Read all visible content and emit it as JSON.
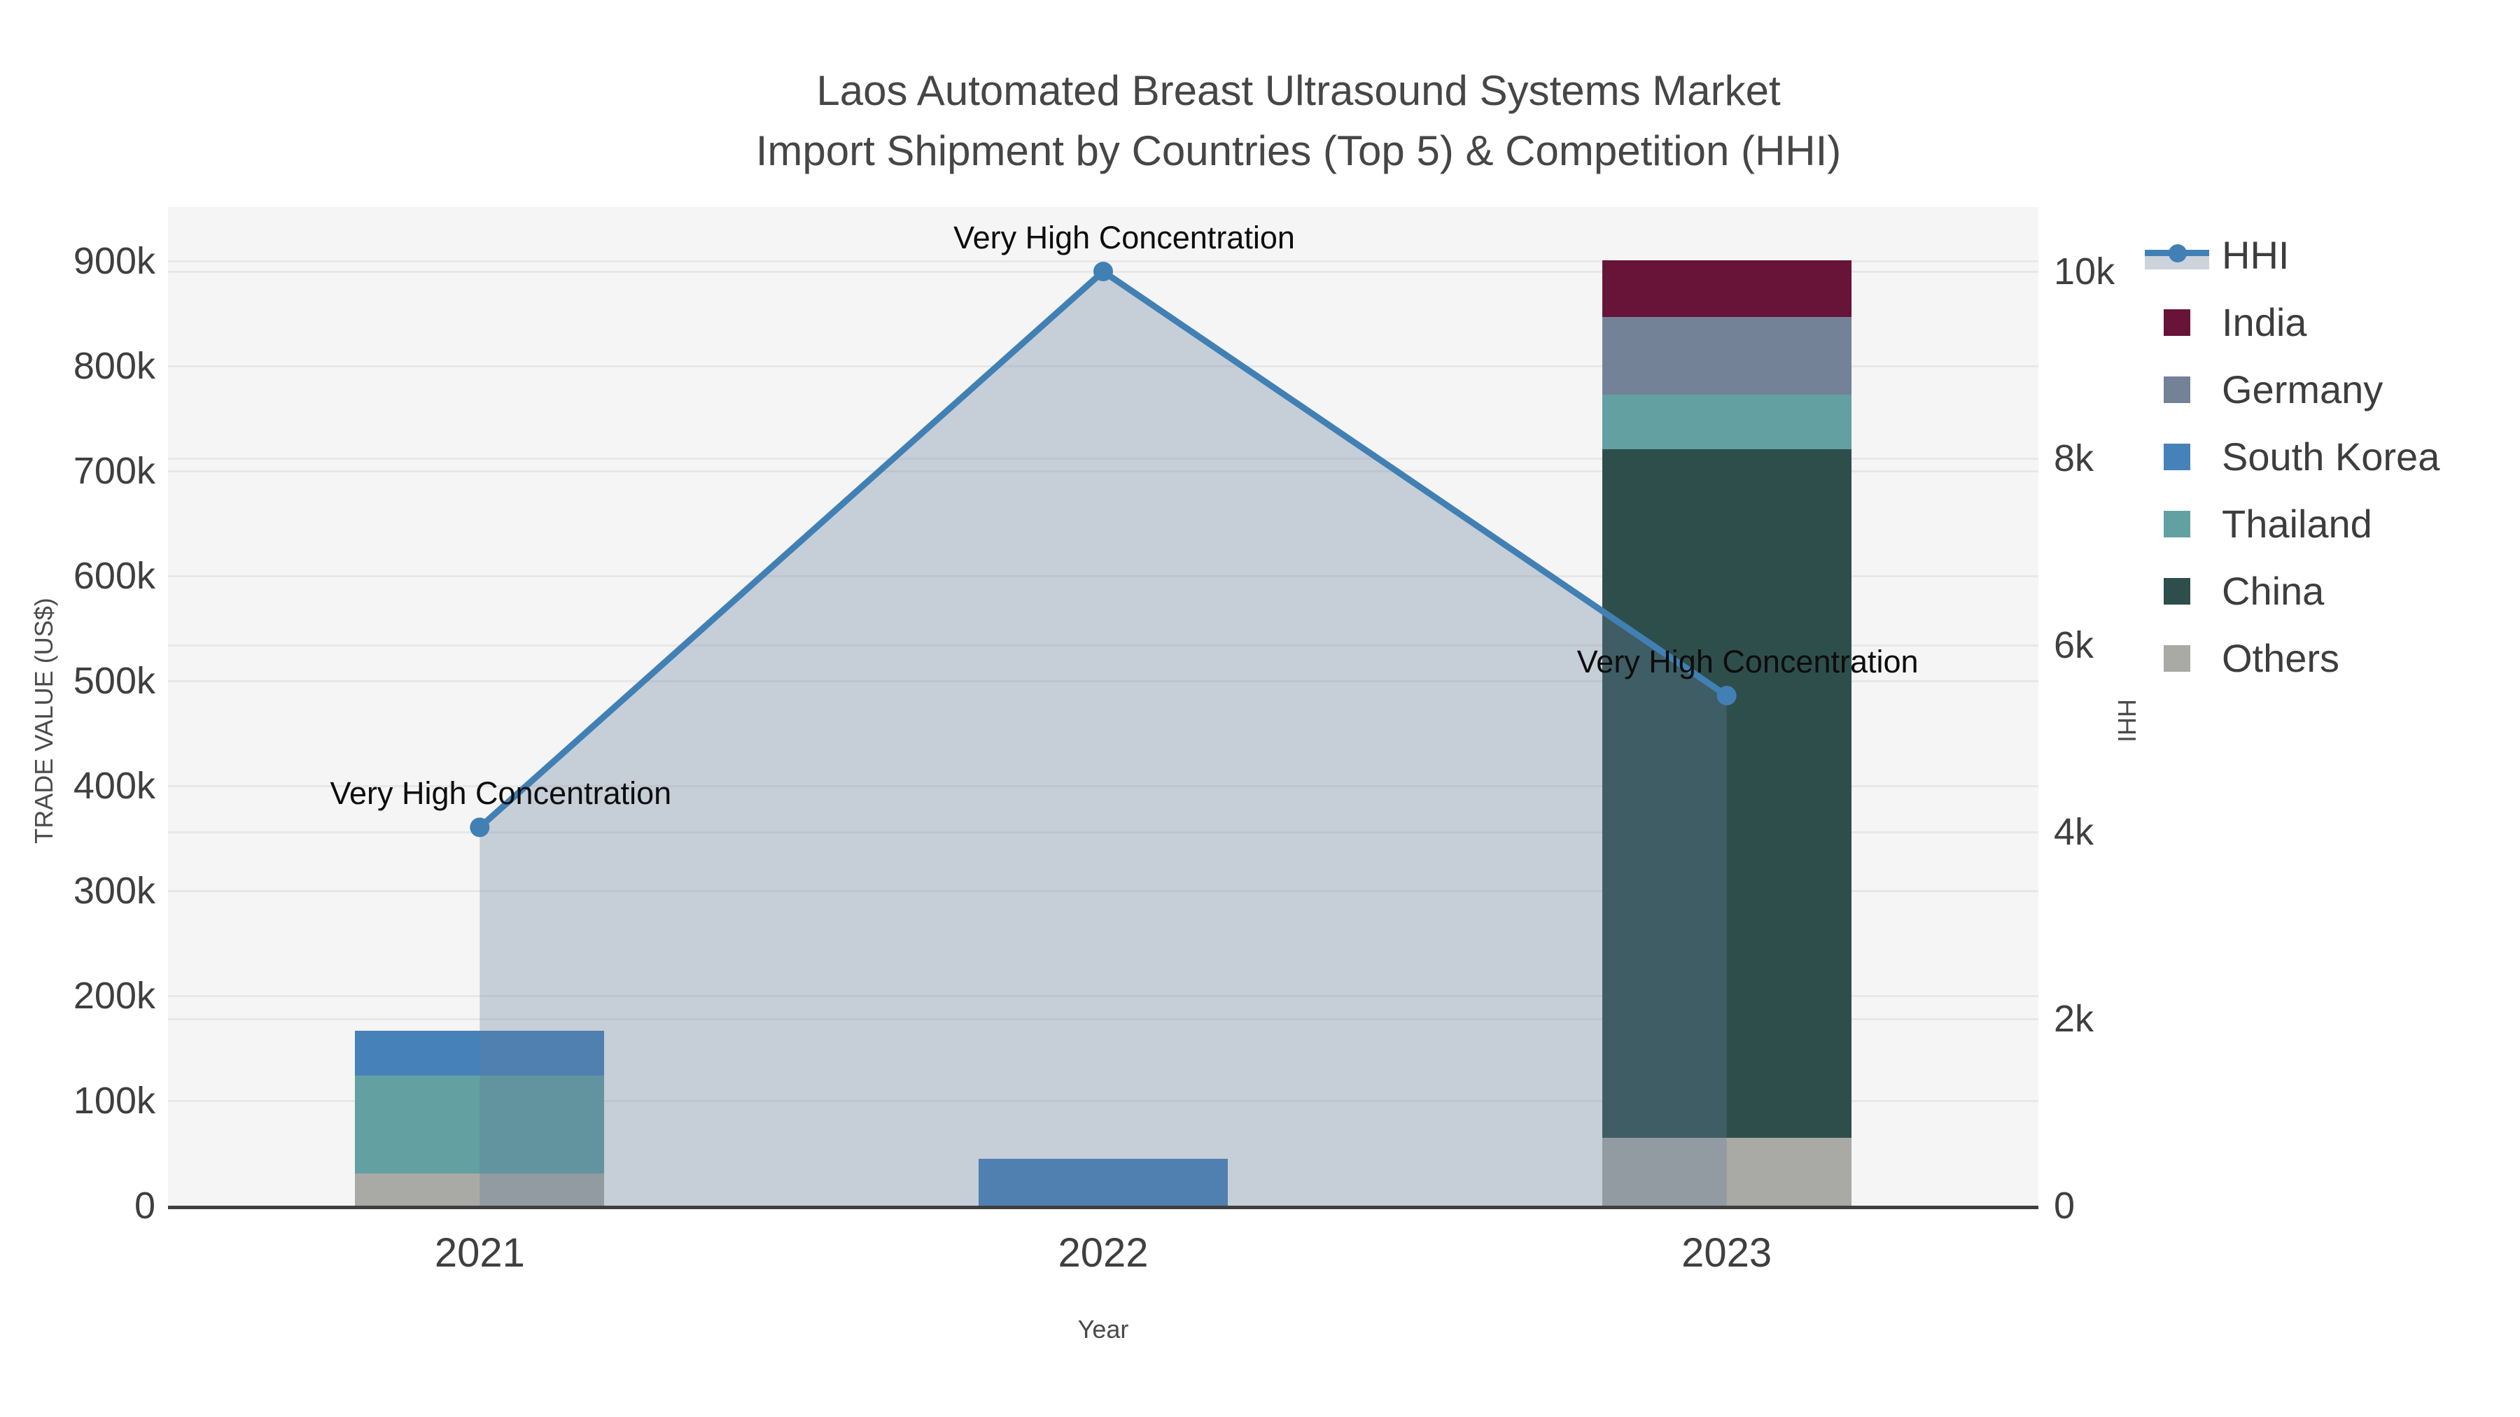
{
  "title": {
    "line1": "Laos Automated Breast Ultrasound Systems Market",
    "line2": "Import Shipment by Countries (Top 5) & Competition (HHI)"
  },
  "axes": {
    "x_title": "Year",
    "y_left_title": "TRADE VALUE (US$)",
    "y_right_title": "HHI",
    "y_left_max": 900000,
    "y_left_step": 100000,
    "y_left_tick_labels": [
      "0",
      "100k",
      "200k",
      "300k",
      "400k",
      "500k",
      "600k",
      "700k",
      "800k",
      "900k"
    ],
    "y_right_max": 10000,
    "y_right_step": 2000,
    "y_right_tick_labels": [
      "0",
      "2k",
      "4k",
      "6k",
      "8k",
      "10k"
    ]
  },
  "chart_data": {
    "type": "bar",
    "subtype": "stacked-bars-with-line-overlay",
    "title": "Laos Automated Breast Ultrasound Systems Market Import Shipment by Countries (Top 5) & Competition (HHI)",
    "xlabel": "Year",
    "ylabel": "TRADE VALUE (US$)",
    "ylabel_right": "HHI",
    "ylim_left": [
      0,
      900000
    ],
    "ylim_right": [
      0,
      10000
    ],
    "grid": true,
    "legend_position": "right",
    "plot_bg": "#f5f5f5",
    "categories": [
      "2021",
      "2022",
      "2023"
    ],
    "series": [
      {
        "name": "Others",
        "color": "#a9a9a6",
        "values": [
          31000,
          0,
          65000
        ]
      },
      {
        "name": "China",
        "color": "#2e4e4c",
        "values": [
          0,
          0,
          656000
        ]
      },
      {
        "name": "Thailand",
        "color": "#62a0a1",
        "values": [
          93000,
          0,
          52000
        ]
      },
      {
        "name": "South Korea",
        "color": "#4682b9",
        "values": [
          43000,
          45000,
          0
        ]
      },
      {
        "name": "Germany",
        "color": "#748298",
        "values": [
          0,
          0,
          74000
        ]
      },
      {
        "name": "India",
        "color": "#681338",
        "values": [
          0,
          0,
          54000
        ]
      }
    ],
    "line_series": {
      "name": "HHI",
      "axis": "right",
      "color": "#4180b4",
      "area_fill": "rgba(100,125,155,0.32)",
      "values": [
        4050,
        10000,
        5460
      ]
    },
    "annotations": [
      {
        "index": 0,
        "text": "Very High Concentration"
      },
      {
        "index": 1,
        "text": "Very High Concentration"
      },
      {
        "index": 2,
        "text": "Very High Concentration"
      }
    ]
  }
}
